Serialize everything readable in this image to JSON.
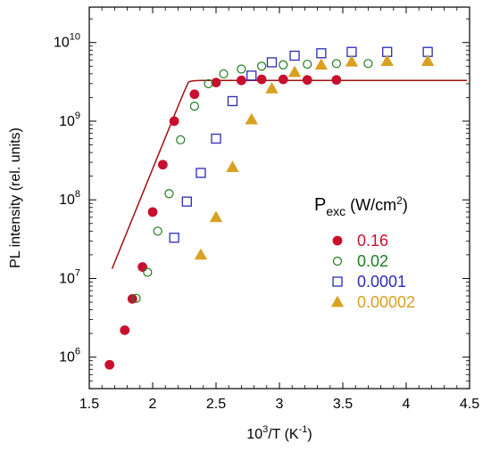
{
  "chart_data": {
    "type": "scatter",
    "xlabel": "10³/T (K⁻¹)",
    "ylabel": "PL intensity (rel. units)",
    "xlim": [
      1.5,
      4.5
    ],
    "ylim_log10": [
      5.6,
      10.45
    ],
    "x_ticks": [
      {
        "value": 1.5,
        "label": "1.5"
      },
      {
        "value": 2.0,
        "label": "2"
      },
      {
        "value": 2.5,
        "label": "2.5"
      },
      {
        "value": 3.0,
        "label": "3"
      },
      {
        "value": 3.5,
        "label": "3.5"
      },
      {
        "value": 4.0,
        "label": "4"
      },
      {
        "value": 4.5,
        "label": "4.5"
      }
    ],
    "y_ticks": [
      {
        "exp": 6,
        "base": "10",
        "sup": "6"
      },
      {
        "exp": 7,
        "base": "10",
        "sup": "7"
      },
      {
        "exp": 8,
        "base": "10",
        "sup": "8"
      },
      {
        "exp": 9,
        "base": "10",
        "sup": "9"
      },
      {
        "exp": 10,
        "base": "10",
        "sup": "10"
      }
    ],
    "legend": {
      "title_main": "P",
      "title_sub": "exc",
      "title_units": " (W/cm",
      "title_units_sup": "2",
      "title_close": ")",
      "placement": "right"
    },
    "series": [
      {
        "name": "0.16",
        "marker": "filled-circle",
        "color": "#c8102e",
        "points": [
          [
            1.66,
            800000.0
          ],
          [
            1.78,
            2200000.0
          ],
          [
            1.84,
            5500000.0
          ],
          [
            1.92,
            14000000.0
          ],
          [
            2.0,
            70000000.0
          ],
          [
            2.08,
            280000000.0
          ],
          [
            2.17,
            1000000000.0
          ],
          [
            2.33,
            2200000000.0
          ],
          [
            2.5,
            3100000000.0
          ],
          [
            2.7,
            3300000000.0
          ],
          [
            2.86,
            3400000000.0
          ],
          [
            3.03,
            3400000000.0
          ],
          [
            3.22,
            3350000000.0
          ],
          [
            3.45,
            3350000000.0
          ]
        ]
      },
      {
        "name": "0.02",
        "marker": "open-circle",
        "color": "#1f7a1f",
        "points": [
          [
            1.87,
            5600000.0
          ],
          [
            1.96,
            12000000.0
          ],
          [
            2.04,
            40000000.0
          ],
          [
            2.13,
            120000000.0
          ],
          [
            2.22,
            580000000.0
          ],
          [
            2.33,
            1550000000.0
          ],
          [
            2.44,
            3000000000.0
          ],
          [
            2.56,
            4000000000.0
          ],
          [
            2.7,
            4600000000.0
          ],
          [
            2.86,
            5000000000.0
          ],
          [
            3.03,
            5200000000.0
          ],
          [
            3.22,
            5300000000.0
          ],
          [
            3.45,
            5400000000.0
          ],
          [
            3.7,
            5400000000.0
          ]
        ]
      },
      {
        "name": "0.0001",
        "marker": "open-square",
        "color": "#2b2bb8",
        "points": [
          [
            2.17,
            33000000.0
          ],
          [
            2.27,
            95000000.0
          ],
          [
            2.38,
            220000000.0
          ],
          [
            2.5,
            600000000.0
          ],
          [
            2.63,
            1800000000.0
          ],
          [
            2.78,
            3800000000.0
          ],
          [
            2.94,
            5600000000.0
          ],
          [
            3.12,
            6800000000.0
          ],
          [
            3.33,
            7300000000.0
          ],
          [
            3.57,
            7600000000.0
          ],
          [
            3.85,
            7600000000.0
          ],
          [
            4.17,
            7600000000.0
          ]
        ]
      },
      {
        "name": "0.00002",
        "marker": "filled-triangle",
        "color": "#d9a021",
        "points": [
          [
            2.38,
            20000000.0
          ],
          [
            2.5,
            60000000.0
          ],
          [
            2.63,
            260000000.0
          ],
          [
            2.78,
            1050000000.0
          ],
          [
            2.94,
            2600000000.0
          ],
          [
            3.12,
            4200000000.0
          ],
          [
            3.33,
            5200000000.0
          ],
          [
            3.57,
            5700000000.0
          ],
          [
            3.85,
            5800000000.0
          ],
          [
            4.17,
            5800000000.0
          ]
        ]
      }
    ],
    "fit_curve": {
      "color": "#a01010",
      "plateau": 3300000000.0,
      "slope_log10_per_unit": 3.97,
      "knee_x": 2.283
    }
  }
}
